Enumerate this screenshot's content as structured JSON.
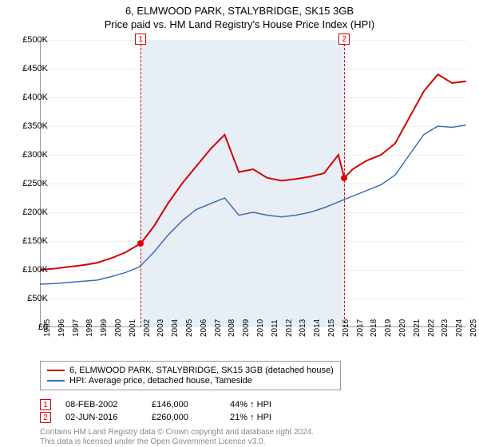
{
  "title_line1": "6, ELMWOOD PARK, STALYBRIDGE, SK15 3GB",
  "title_line2": "Price paid vs. HM Land Registry's House Price Index (HPI)",
  "chart": {
    "type": "line",
    "background_color": "#ffffff",
    "shaded_band_color": "#e8eef6",
    "shaded_band_xstart": 2002.1,
    "shaded_band_xend": 2016.42,
    "grid_color": "#eeeeee",
    "axis_color": "#999999",
    "xlim": [
      1995,
      2025
    ],
    "ylim": [
      0,
      500000
    ],
    "ytick_step": 50000,
    "ytick_prefix": "£",
    "ytick_suffix": "K",
    "ytick_divisor": 1000,
    "xtick_step": 1,
    "xtick_rotate_deg": -90,
    "label_fontsize": 11,
    "tick_fontsize": 10,
    "series": [
      {
        "name": "6, ELMWOOD PARK, STALYBRIDGE, SK15 3GB (detached house)",
        "color": "#d40000",
        "line_width": 2,
        "points": [
          [
            1995,
            100000
          ],
          [
            1996,
            102000
          ],
          [
            1997,
            105000
          ],
          [
            1998,
            108000
          ],
          [
            1999,
            112000
          ],
          [
            2000,
            120000
          ],
          [
            2001,
            130000
          ],
          [
            2002.1,
            146000
          ],
          [
            2003,
            175000
          ],
          [
            2004,
            215000
          ],
          [
            2005,
            250000
          ],
          [
            2006,
            280000
          ],
          [
            2007,
            310000
          ],
          [
            2008,
            335000
          ],
          [
            2009,
            270000
          ],
          [
            2010,
            275000
          ],
          [
            2011,
            260000
          ],
          [
            2012,
            255000
          ],
          [
            2013,
            258000
          ],
          [
            2014,
            262000
          ],
          [
            2015,
            268000
          ],
          [
            2016,
            300000
          ],
          [
            2016.42,
            260000
          ],
          [
            2017,
            275000
          ],
          [
            2018,
            290000
          ],
          [
            2019,
            300000
          ],
          [
            2020,
            320000
          ],
          [
            2021,
            365000
          ],
          [
            2022,
            410000
          ],
          [
            2023,
            440000
          ],
          [
            2024,
            425000
          ],
          [
            2025,
            428000
          ]
        ]
      },
      {
        "name": "HPI: Average price, detached house, Tameside",
        "color": "#3b6fb6",
        "line_width": 1.5,
        "points": [
          [
            1995,
            75000
          ],
          [
            1996,
            76000
          ],
          [
            1997,
            78000
          ],
          [
            1998,
            80000
          ],
          [
            1999,
            82000
          ],
          [
            2000,
            88000
          ],
          [
            2001,
            95000
          ],
          [
            2002,
            105000
          ],
          [
            2003,
            130000
          ],
          [
            2004,
            160000
          ],
          [
            2005,
            185000
          ],
          [
            2006,
            205000
          ],
          [
            2007,
            215000
          ],
          [
            2008,
            225000
          ],
          [
            2009,
            195000
          ],
          [
            2010,
            200000
          ],
          [
            2011,
            195000
          ],
          [
            2012,
            192000
          ],
          [
            2013,
            195000
          ],
          [
            2014,
            200000
          ],
          [
            2015,
            208000
          ],
          [
            2016,
            218000
          ],
          [
            2017,
            228000
          ],
          [
            2018,
            238000
          ],
          [
            2019,
            248000
          ],
          [
            2020,
            265000
          ],
          [
            2021,
            300000
          ],
          [
            2022,
            335000
          ],
          [
            2023,
            350000
          ],
          [
            2024,
            348000
          ],
          [
            2025,
            352000
          ]
        ]
      }
    ],
    "markers": [
      {
        "num": "1",
        "x": 2002.1,
        "y": 146000,
        "box_y_offset": -8
      },
      {
        "num": "2",
        "x": 2016.42,
        "y": 260000,
        "box_y_offset": -8
      }
    ],
    "marker_line_color": "#d40000",
    "marker_box_border": "#d40000",
    "marker_box_text_color": "#d40000"
  },
  "legend": {
    "border_color": "#999999",
    "fontsize": 11
  },
  "sales": [
    {
      "num": "1",
      "date": "08-FEB-2002",
      "price": "£146,000",
      "pct": "44%",
      "arrow": "↑",
      "vs": "HPI"
    },
    {
      "num": "2",
      "date": "02-JUN-2016",
      "price": "£260,000",
      "pct": "21%",
      "arrow": "↑",
      "vs": "HPI"
    }
  ],
  "footer_line1": "Contains HM Land Registry data © Crown copyright and database right 2024.",
  "footer_line2": "This data is licensed under the Open Government Licence v3.0."
}
